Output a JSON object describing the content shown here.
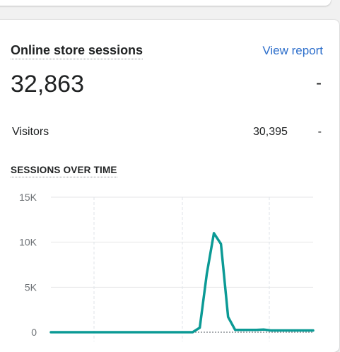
{
  "card": {
    "title": "Online store sessions",
    "view_report_label": "View report",
    "total_sessions": "32,863",
    "total_change": "-"
  },
  "visitors": {
    "label": "Visitors",
    "value": "30,395",
    "change": "-"
  },
  "section_title": "SESSIONS OVER TIME",
  "colors": {
    "line": "#0b9a95",
    "link": "#2c6ecb"
  },
  "chart_data": {
    "type": "line",
    "title": "SESSIONS OVER TIME",
    "ylim": [
      0,
      15000
    ],
    "yticks": [
      {
        "value": 15000,
        "label": "15K"
      },
      {
        "value": 10000,
        "label": "10K"
      },
      {
        "value": 5000,
        "label": "5K"
      },
      {
        "value": 0,
        "label": "0"
      }
    ],
    "grid": true,
    "series": [
      {
        "values": [
          0,
          0,
          0,
          0,
          0,
          0,
          0,
          0,
          0,
          0,
          0,
          0,
          0,
          0,
          0,
          0,
          0,
          0,
          0,
          0,
          0,
          500,
          6500,
          11000,
          9800,
          1700,
          250,
          250,
          250,
          250,
          300,
          200,
          200,
          200,
          200,
          200,
          200,
          200
        ]
      }
    ],
    "comparison_series_values": [
      0,
      0,
      0,
      0,
      0,
      0,
      0,
      0,
      0,
      0,
      0,
      0,
      0,
      0,
      0,
      0,
      0,
      0,
      0,
      0,
      0,
      0,
      0,
      0,
      0,
      0,
      0,
      0,
      0,
      0,
      0,
      0,
      0,
      0,
      0,
      0,
      0,
      0
    ]
  }
}
